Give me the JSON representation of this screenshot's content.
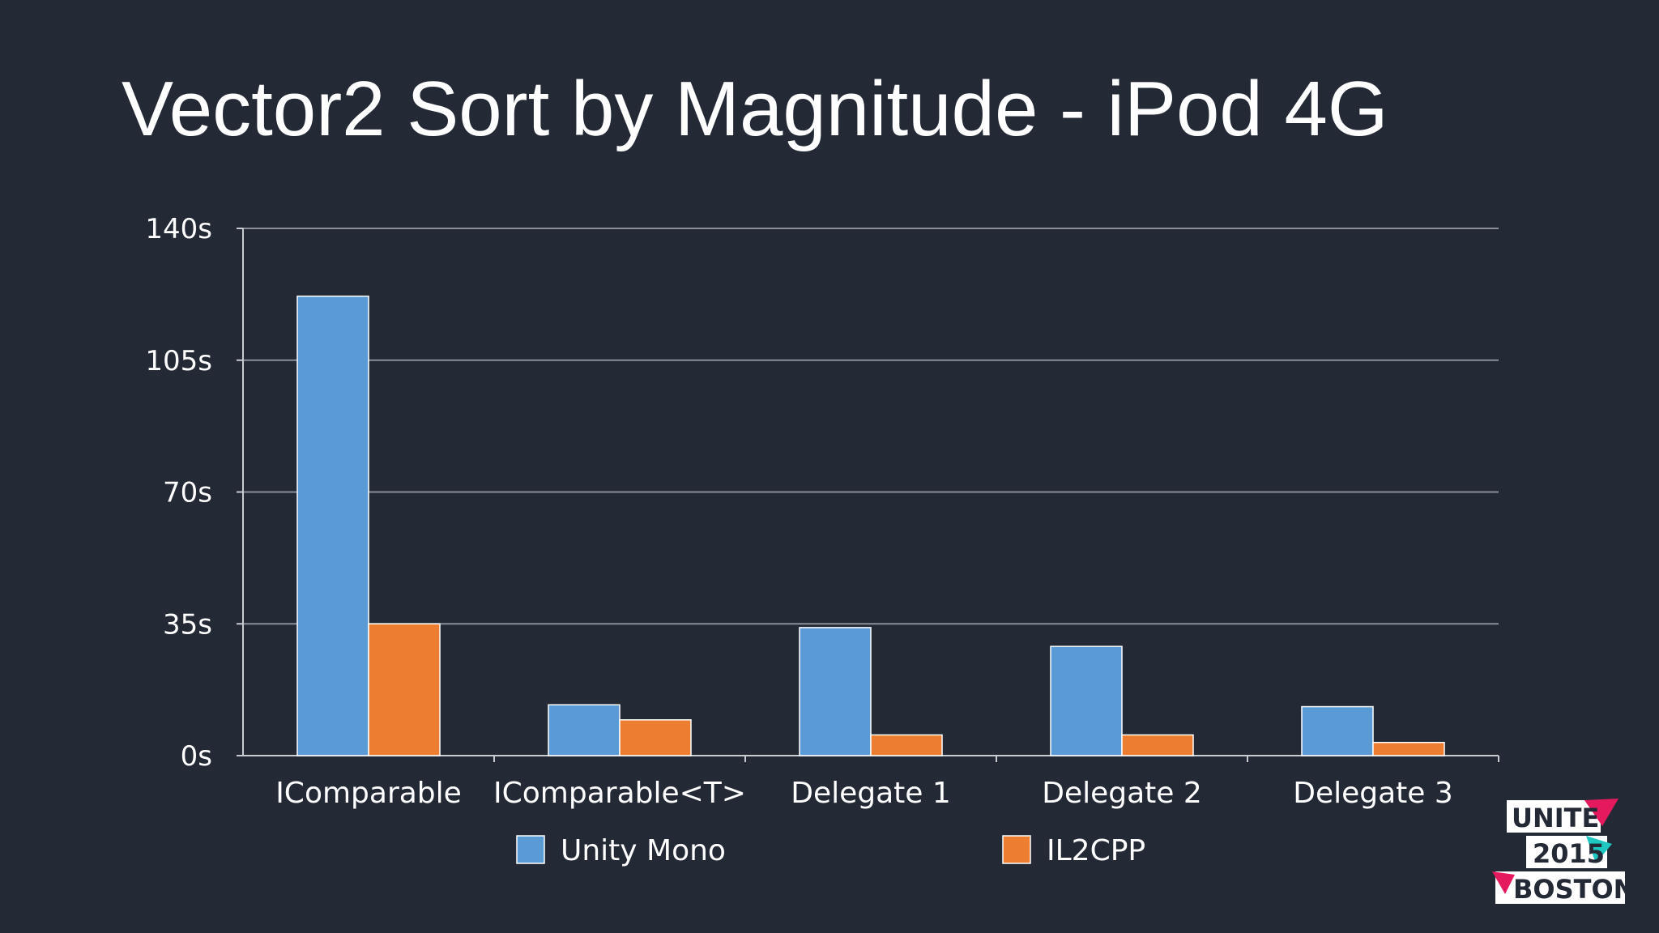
{
  "slide": {
    "title": "Vector2 Sort by Magnitude - iPod 4G"
  },
  "chart_data": {
    "type": "bar",
    "title": "",
    "categories": [
      "IComparable",
      "IComparable<T>",
      "Delegate 1",
      "Delegate 2",
      "Delegate 3"
    ],
    "series": [
      {
        "name": "Unity Mono",
        "color": "#5b9bd5",
        "values": [
          122,
          13.5,
          34,
          29,
          13
        ]
      },
      {
        "name": "IL2CPP",
        "color": "#ed7d31",
        "values": [
          35,
          9.5,
          5.5,
          5.5,
          3.5
        ]
      }
    ],
    "y_ticks": [
      0,
      35,
      70,
      105,
      140
    ],
    "y_tick_labels": [
      "0s",
      "35s",
      "70s",
      "105s",
      "140s"
    ],
    "ylim": [
      0,
      140
    ],
    "xlabel": "",
    "ylabel": "",
    "grid": true,
    "legend_position": "bottom"
  },
  "logo": {
    "line1": "UNITE",
    "line2": "2015",
    "line3": "BOSTON",
    "accent_pink": "#e5195e",
    "accent_teal": "#1fc7c1"
  }
}
